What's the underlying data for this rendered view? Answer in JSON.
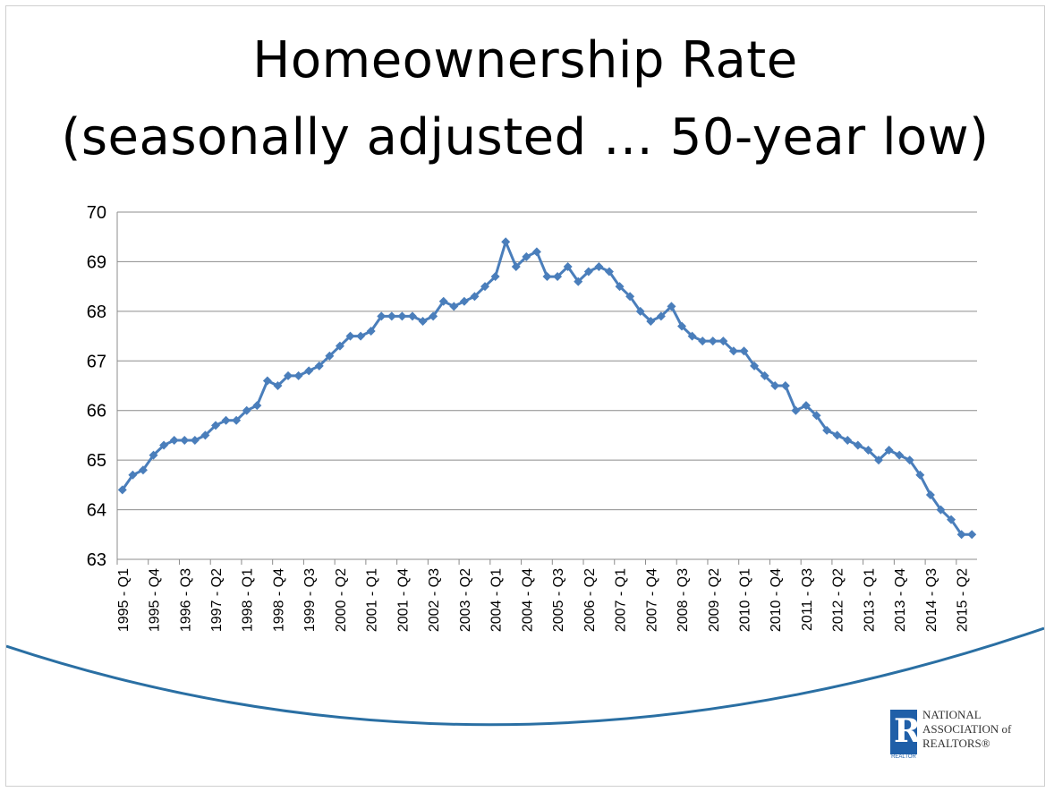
{
  "chart_data": {
    "type": "line",
    "title_line1": "Homeownership Rate",
    "title_line2": "(seasonally adjusted … 50-year low)",
    "ylim": [
      63,
      70
    ],
    "y_ticks": [
      "63",
      "64",
      "65",
      "66",
      "67",
      "68",
      "69",
      "70"
    ],
    "grid": true,
    "legend": "none",
    "x_tick_labels": [
      "1995 - Q1",
      "1995 - Q4",
      "1996 - Q3",
      "1997 - Q2",
      "1998 - Q1",
      "1998 - Q4",
      "1999 - Q3",
      "2000 - Q2",
      "2001 - Q1",
      "2001 - Q4",
      "2002 - Q3",
      "2003 - Q2",
      "2004 - Q1",
      "2004 - Q4",
      "2005 - Q3",
      "2006 - Q2",
      "2007 - Q1",
      "2007 - Q4",
      "2008 - Q3",
      "2009 - Q2",
      "2010 - Q1",
      "2010 - Q4",
      "2011 - Q3",
      "2012 - Q2",
      "2013 - Q1",
      "2013 - Q4",
      "2014 - Q3",
      "2015 - Q2"
    ],
    "series": [
      {
        "color": "#4a7ebb",
        "values": [
          64.4,
          64.7,
          64.8,
          65.1,
          65.3,
          65.4,
          65.4,
          65.4,
          65.5,
          65.7,
          65.8,
          65.8,
          66.0,
          66.1,
          66.6,
          66.5,
          66.7,
          66.7,
          66.8,
          66.9,
          67.1,
          67.3,
          67.5,
          67.5,
          67.6,
          67.9,
          67.9,
          67.9,
          67.9,
          67.8,
          67.9,
          68.2,
          68.1,
          68.2,
          68.3,
          68.5,
          68.7,
          69.4,
          68.9,
          69.1,
          69.2,
          68.7,
          68.7,
          68.9,
          68.6,
          68.8,
          68.9,
          68.8,
          68.5,
          68.3,
          68.0,
          67.8,
          67.9,
          68.1,
          67.7,
          67.5,
          67.4,
          67.4,
          67.4,
          67.2,
          67.2,
          66.9,
          66.7,
          66.5,
          66.5,
          66.0,
          66.1,
          65.9,
          65.6,
          65.5,
          65.4,
          65.3,
          65.2,
          65.0,
          65.2,
          65.1,
          65.0,
          64.7,
          64.3,
          64.0,
          63.8,
          63.5,
          63.5
        ]
      }
    ]
  },
  "logo": {
    "mark_letter": "R",
    "mark_caption": "REALTOR",
    "text": "NATIONAL\nASSOCIATION of\nREALTORS®"
  }
}
